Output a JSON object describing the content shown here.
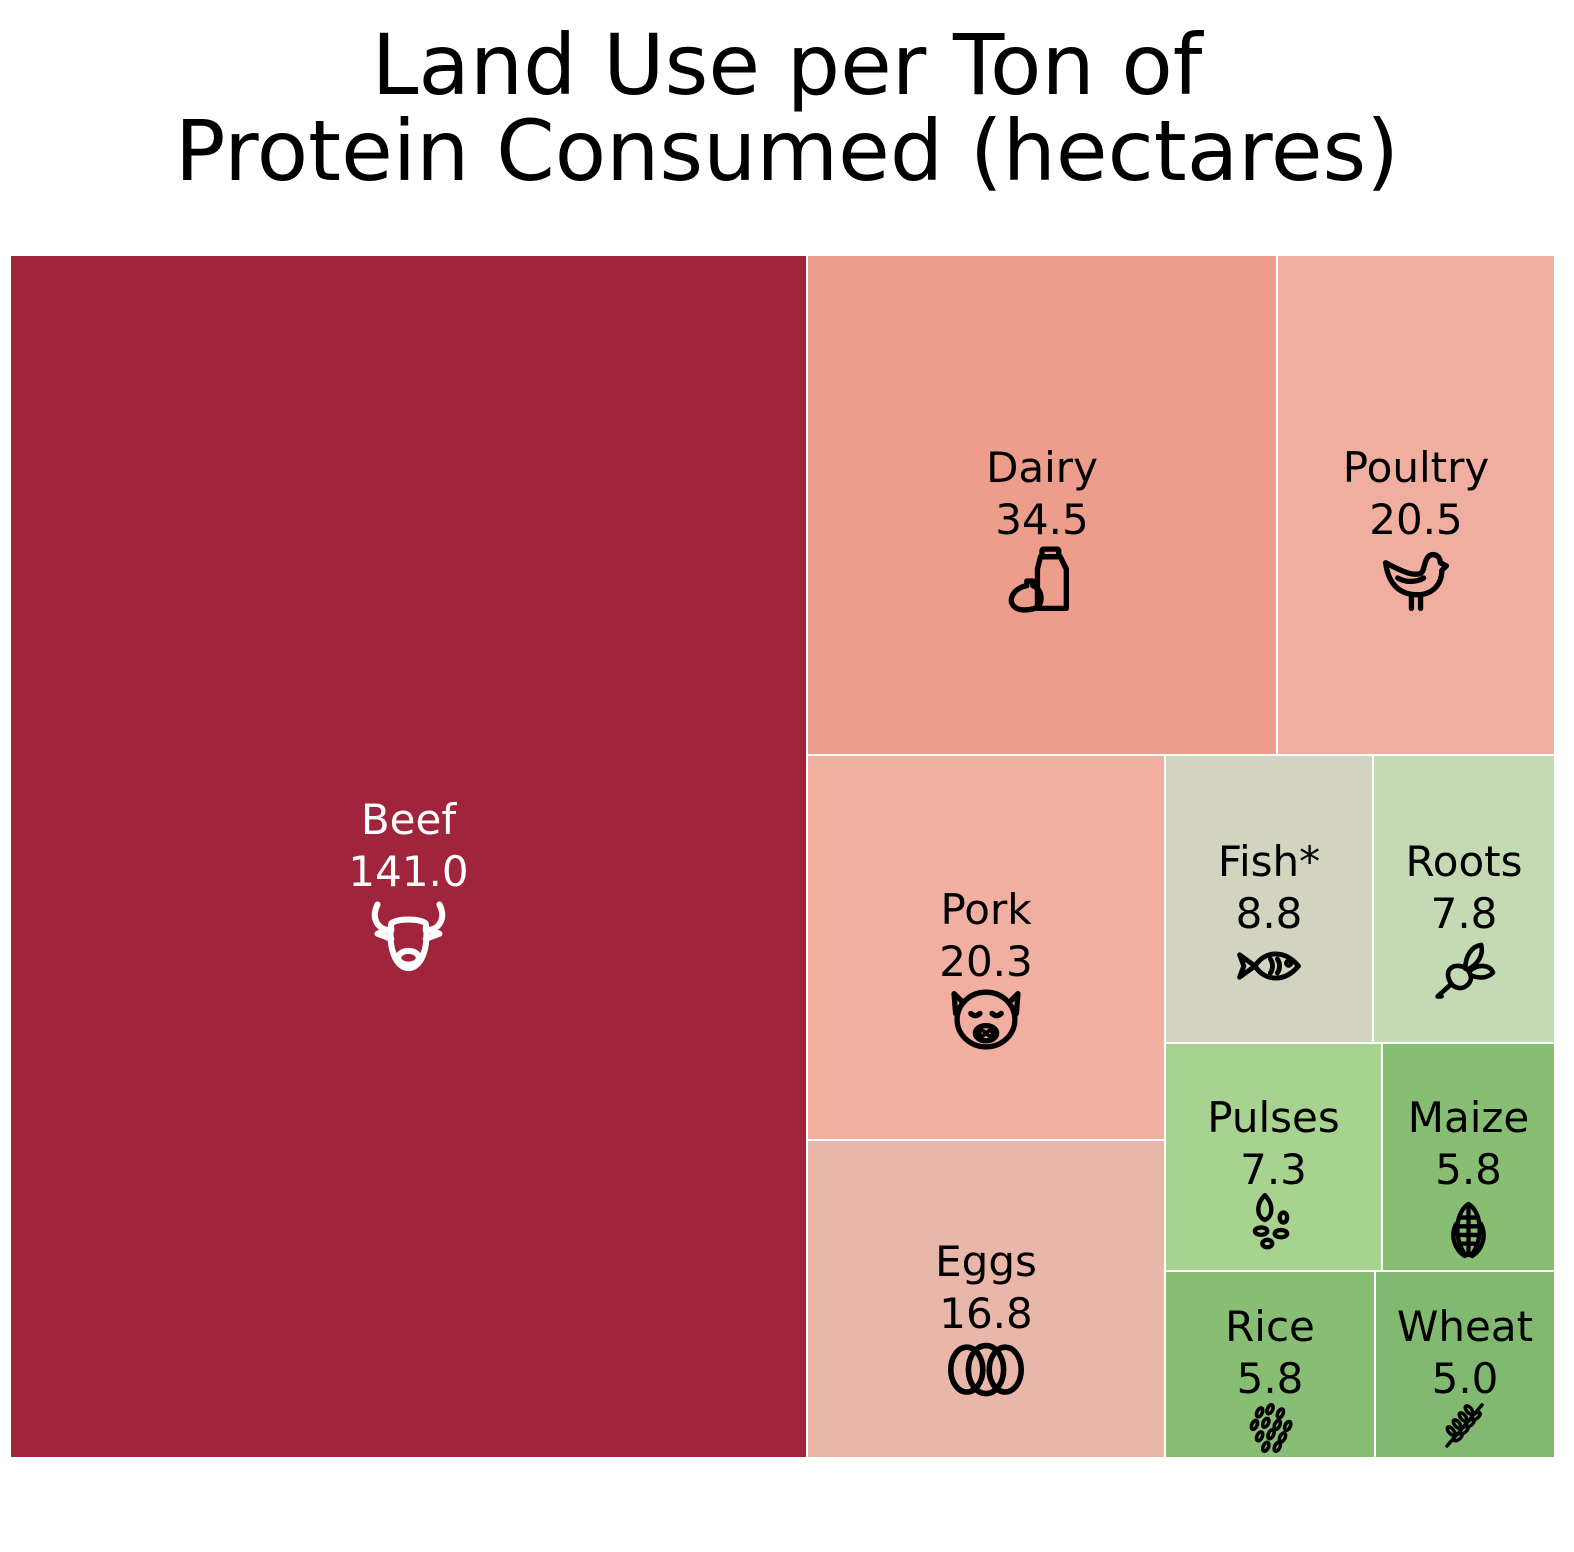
{
  "chart_data": {
    "type": "treemap",
    "title_lines": [
      "Land Use per Ton of",
      "Protein Consumed (hectares)"
    ],
    "unit": "hectares",
    "items": [
      {
        "name": "Beef",
        "value": "141.0",
        "color": "#a0253c",
        "text_color": "#ffffff",
        "icon": "cow-icon"
      },
      {
        "name": "Dairy",
        "value": "34.5",
        "color": "#ec9d8b",
        "text_color": "#000000",
        "icon": "milk-bottle-icon"
      },
      {
        "name": "Poultry",
        "value": "20.5",
        "color": "#f0aea0",
        "text_color": "#000000",
        "icon": "chicken-icon"
      },
      {
        "name": "Pork",
        "value": "20.3",
        "color": "#f0afa0",
        "text_color": "#000000",
        "icon": "pig-icon"
      },
      {
        "name": "Eggs",
        "value": "16.8",
        "color": "#e8b7a9",
        "text_color": "#000000",
        "icon": "eggs-icon"
      },
      {
        "name": "Fish*",
        "value": "8.8",
        "color": "#d3d4bf",
        "text_color": "#000000",
        "icon": "fish-icon"
      },
      {
        "name": "Roots",
        "value": "7.8",
        "color": "#c4dab4",
        "text_color": "#000000",
        "icon": "radish-icon"
      },
      {
        "name": "Pulses",
        "value": "7.3",
        "color": "#a8d290",
        "text_color": "#000000",
        "icon": "beans-icon"
      },
      {
        "name": "Maize",
        "value": "5.8",
        "color": "#88bd74",
        "text_color": "#000000",
        "icon": "corn-icon"
      },
      {
        "name": "Rice",
        "value": "5.8",
        "color": "#88bd74",
        "text_color": "#000000",
        "icon": "rice-icon"
      },
      {
        "name": "Wheat",
        "value": "5.0",
        "color": "#82b970",
        "text_color": "#000000",
        "icon": "wheat-icon"
      }
    ]
  }
}
